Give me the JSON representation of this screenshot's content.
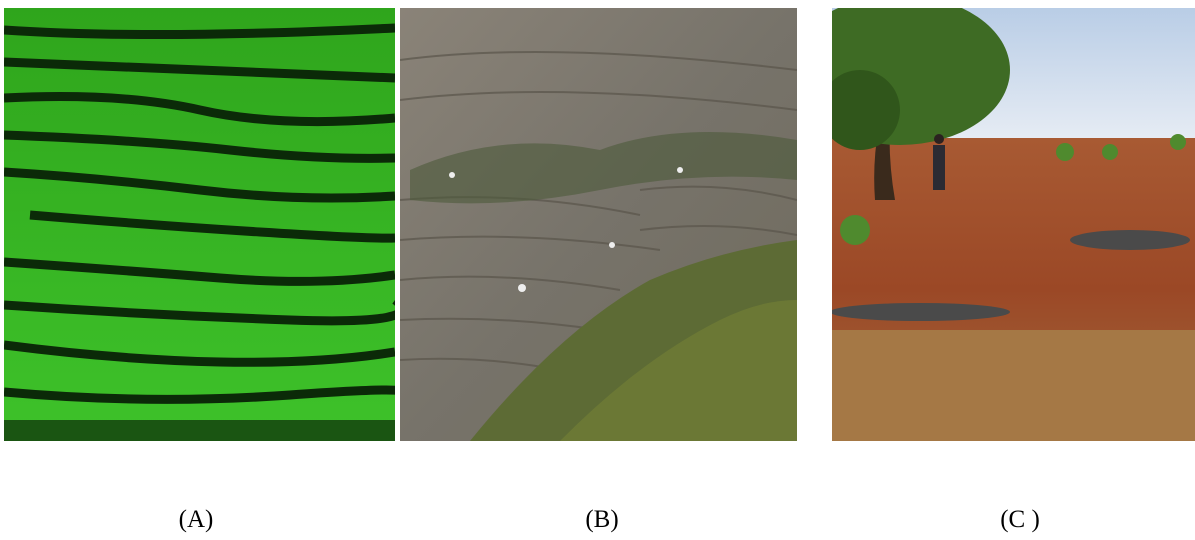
{
  "panels": [
    {
      "label": "(A)"
    },
    {
      "label": "(B)"
    },
    {
      "label": "(C )"
    }
  ]
}
